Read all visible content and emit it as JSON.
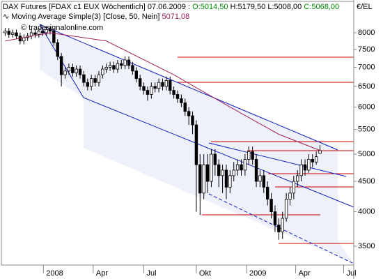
{
  "chart_data": {
    "type": "candlestick",
    "title": "DAX Futures [FDAX c1 EUX Wöchentlich]",
    "date": "07.06.2009",
    "ohlc_labels": [
      "O:5014,50",
      "H:5179,50",
      "L:5008,00",
      "C:5068,00"
    ],
    "indicator_label": "Moving Average Simple(3) [Close, 50, Nein]",
    "watermark": "© tradesignalonline.com",
    "unit": "€/EL",
    "log_scale": true,
    "ylim": [
      3254,
      9034
    ],
    "yticks": [
      3500,
      4000,
      4500,
      5000,
      5500,
      6000,
      6500,
      7000,
      7500,
      8000
    ],
    "xlim": [
      -1,
      93
    ],
    "xticks": [
      {
        "value": 10.2,
        "label": "2008"
      },
      {
        "value": 23.5,
        "label": "Apr"
      },
      {
        "value": 37,
        "label": "Jul"
      },
      {
        "value": 51,
        "label": "Okt"
      },
      {
        "value": 64.4,
        "label": "2009"
      },
      {
        "value": 77.5,
        "label": "Apr"
      },
      {
        "value": 90.3,
        "label": "Jul"
      }
    ],
    "up_color": "#ffffff",
    "down_color": "#000000",
    "open": [
      8000,
      8050,
      7950,
      8000,
      7900,
      7750,
      7850,
      7900,
      8000,
      7950,
      8050,
      8000,
      8100,
      8050,
      7700,
      7300,
      6800,
      6900,
      7000,
      6850,
      6950,
      6800,
      6600,
      6500,
      6700,
      6600,
      6800,
      6950,
      7000,
      7050,
      6950,
      7100,
      7050,
      7200,
      7050,
      6900,
      6700,
      6500,
      6400,
      6300,
      6500,
      6450,
      6600,
      6500,
      6650,
      6400,
      6300,
      6200,
      6100,
      5900,
      5800,
      5600,
      4800,
      4300,
      4800,
      4500,
      5000,
      4800,
      4600,
      4700,
      4400,
      4600,
      4700,
      4800,
      4700,
      4900,
      5050,
      4900,
      4500,
      4600,
      4400,
      4200,
      4000,
      3800,
      3700,
      3900,
      4200,
      4300,
      4500,
      4600,
      4800,
      4700,
      4900,
      4850,
      5014.5
    ],
    "high": [
      8150,
      8150,
      8100,
      8100,
      8000,
      7950,
      8000,
      8100,
      8100,
      8150,
      8150,
      8200,
      8200,
      8150,
      7800,
      7400,
      7000,
      7100,
      7100,
      7050,
      7050,
      6900,
      6700,
      6800,
      6800,
      6900,
      7050,
      7100,
      7150,
      7150,
      7200,
      7200,
      7300,
      7300,
      7150,
      7000,
      6800,
      6600,
      6500,
      6600,
      6600,
      6700,
      6700,
      6750,
      6750,
      6500,
      6400,
      6300,
      6200,
      6000,
      5900,
      5700,
      5000,
      5000,
      5000,
      5100,
      5100,
      4900,
      4800,
      4800,
      4700,
      4850,
      4900,
      4900,
      5000,
      5150,
      5150,
      5000,
      4700,
      4700,
      4500,
      4300,
      4100,
      3900,
      4000,
      4300,
      4400,
      4600,
      4700,
      4900,
      4900,
      5000,
      5000,
      5050,
      5179.5
    ],
    "low": [
      7900,
      7850,
      7850,
      7800,
      7650,
      7650,
      7750,
      7800,
      7850,
      7850,
      7900,
      7900,
      7950,
      7600,
      7200,
      6500,
      6700,
      6800,
      6750,
      6750,
      6700,
      6500,
      6400,
      6400,
      6500,
      6500,
      6700,
      6850,
      6900,
      6850,
      6850,
      6950,
      6950,
      6950,
      6800,
      6600,
      6400,
      6300,
      6150,
      6200,
      6350,
      6350,
      6400,
      6400,
      6300,
      6200,
      6100,
      6000,
      5800,
      5600,
      5400,
      4000,
      3950,
      4200,
      4300,
      4400,
      4600,
      4400,
      4300,
      4200,
      4300,
      4500,
      4600,
      4600,
      4600,
      4800,
      4800,
      4400,
      4400,
      4300,
      4100,
      3900,
      3700,
      3590,
      3600,
      3850,
      4100,
      4200,
      4400,
      4500,
      4600,
      4650,
      4750,
      4800,
      5008
    ],
    "close": [
      8050,
      7950,
      8000,
      7900,
      7750,
      7850,
      7900,
      8000,
      7950,
      8050,
      8000,
      8100,
      8050,
      7700,
      7300,
      6800,
      6900,
      7000,
      6850,
      6950,
      6800,
      6600,
      6500,
      6700,
      6600,
      6800,
      6950,
      7000,
      7050,
      6950,
      7100,
      7050,
      7200,
      7050,
      6900,
      6700,
      6500,
      6400,
      6300,
      6500,
      6450,
      6600,
      6500,
      6650,
      6400,
      6300,
      6200,
      6100,
      5900,
      5800,
      5600,
      4800,
      4300,
      4800,
      4500,
      5000,
      4800,
      4600,
      4700,
      4400,
      4600,
      4700,
      4800,
      4700,
      4900,
      5050,
      4900,
      4500,
      4600,
      4400,
      4200,
      4000,
      3800,
      3700,
      3900,
      4200,
      4300,
      4500,
      4600,
      4800,
      4700,
      4900,
      4850,
      4950,
      5068
    ],
    "moving_average": {
      "color": "#a0205a",
      "x": [
        0,
        12,
        27,
        45,
        60,
        73,
        84
      ],
      "values": [
        7750,
        8000,
        7750,
        6800,
        6000,
        5400,
        5071.08
      ],
      "value_labels": [
        null,
        null,
        null,
        null,
        null,
        null,
        "5071,08"
      ]
    }
  }
}
